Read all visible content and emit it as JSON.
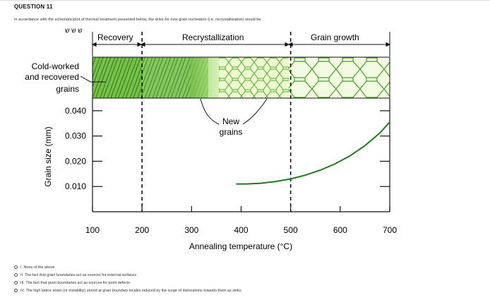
{
  "question": {
    "title": "QUESTION 11",
    "prompt": "In accordance with the schematic/plot of thermal treatment presented below, the drive for new grain nucleation (i.e. recrystallization) would be"
  },
  "figure": {
    "stages": {
      "recovery": "Recovery",
      "recrystallization": "Recrystallization",
      "grain_growth": "Grain growth"
    },
    "truncated_label": "ש ש ש",
    "cold_worked_label": [
      "Cold-worked",
      "and recovered",
      "grains"
    ],
    "new_grains_label": [
      "New",
      "grains"
    ],
    "colors": {
      "curve": "#1e7a1e",
      "structure": "#3f9b2c",
      "structure_light": "#9dd66a",
      "structure_pale": "#e8f7c8"
    }
  },
  "chart_data": {
    "type": "line",
    "xlabel": "Annealing temperature (°C)",
    "ylabel": "Grain size (mm)",
    "x_ticks": [
      "100",
      "200",
      "300",
      "400",
      "500",
      "600",
      "700"
    ],
    "y_ticks": [
      "0.010",
      "0.020",
      "0.030",
      "0.040"
    ],
    "xlim": [
      100,
      700
    ],
    "ylim": [
      0.0,
      0.045
    ],
    "boundaries_x": [
      200,
      500
    ],
    "series": [
      {
        "x": [
          390,
          410,
          440,
          470,
          500,
          530,
          560,
          590,
          620,
          650,
          680,
          700
        ],
        "y": [
          0.011,
          0.011,
          0.0113,
          0.012,
          0.013,
          0.0145,
          0.0165,
          0.019,
          0.0222,
          0.0262,
          0.0312,
          0.0355
        ]
      }
    ],
    "grid": false
  },
  "options": [
    {
      "label": "I.   None of the above"
    },
    {
      "label": "II.  The fact that grain boundaries act as sources for external surfaces"
    },
    {
      "label": "III. The fact that grain boundaries act as sources for point defects"
    },
    {
      "label": "IV. The high lattice strain (or instability) stored at grain boundary locales induced by the surge of dislocations towards them as sinks"
    }
  ]
}
